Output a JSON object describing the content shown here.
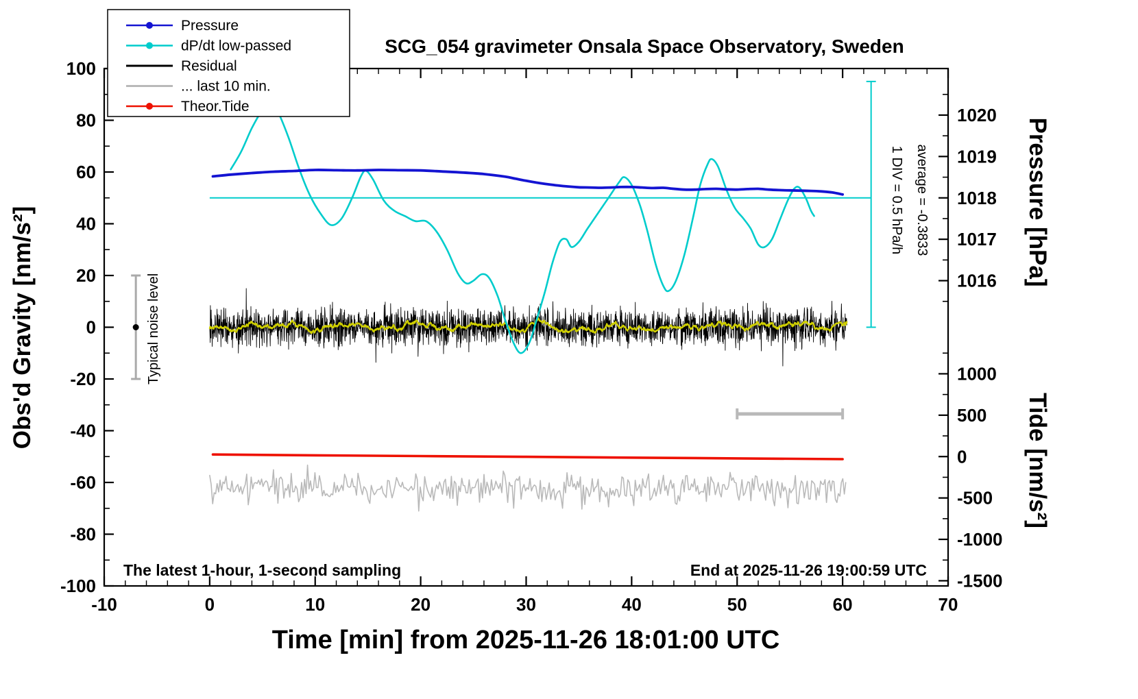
{
  "chart_data": {
    "type": "line",
    "title": "SCG_054 gravimeter Onsala Space Observatory, Sweden",
    "xlabel": "Time [min] from 2025-11-26 18:01:00 UTC",
    "ylabel_left": "Obs'd Gravity [nm/s²]",
    "ylabel_pressure": "Pressure [hPa]",
    "ylabel_tide": "Tide [nm/s²]",
    "xlim": [
      -10,
      70
    ],
    "ylim": [
      -100,
      100
    ],
    "x_major_ticks": [
      -10,
      0,
      10,
      20,
      30,
      40,
      50,
      60,
      70
    ],
    "x_minor_step": 2,
    "y_major_ticks": [
      -100,
      -80,
      -60,
      -40,
      -20,
      0,
      20,
      40,
      60,
      80,
      100
    ],
    "y_minor_ticks": [
      -90,
      -70,
      -50,
      -30,
      -10,
      10,
      30,
      50,
      70,
      90
    ],
    "pressure_axis": {
      "tick_labels": [
        "1020",
        "1019",
        "1018",
        "1017",
        "1016"
      ],
      "tick_y": [
        82,
        66,
        50,
        34,
        18
      ],
      "minor_y": [
        90,
        74,
        58,
        42,
        26,
        10
      ]
    },
    "tide_axis": {
      "tick_labels": [
        "1000",
        "500",
        "0",
        "-500",
        "-1000",
        "-1500"
      ],
      "tick_y": [
        -18,
        -34,
        -50,
        -66,
        -82,
        -98
      ],
      "minor_y": [
        -10,
        -26,
        -42,
        -58,
        -74,
        -90
      ]
    },
    "legend": [
      {
        "label": "Pressure",
        "color": "#1414d2",
        "dot": true
      },
      {
        "label": "dP/dt low-passed",
        "color": "#00cccc",
        "dot": true
      },
      {
        "label": "Residual",
        "color": "#000000",
        "dot": false
      },
      {
        "label": "... last 10 min.",
        "color": "#b9b9b9",
        "dot": false
      },
      {
        "label": "Theor.Tide",
        "color": "#ee1100",
        "dot": true
      }
    ],
    "series": [
      {
        "name": "... last 10 min.",
        "type": "noise",
        "color": "#b9b9b9",
        "width": 1.6,
        "mean": -62.3,
        "std": 2.9,
        "spike_prob": 0.012,
        "spike_gain": 2.0,
        "n": 430,
        "x0": 0,
        "x1": 60.3,
        "seed": 777,
        "clamp": 9
      },
      {
        "name": "Theor.Tide",
        "type": "poly",
        "color": "#ee1100",
        "width": 3.6,
        "points": [
          [
            0.3,
            -49.2
          ],
          [
            10,
            -49.5
          ],
          [
            20,
            -49.8
          ],
          [
            30,
            -50.1
          ],
          [
            40,
            -50.4
          ],
          [
            50,
            -50.7
          ],
          [
            60,
            -51.0
          ]
        ]
      },
      {
        "name": "Residual",
        "type": "noise",
        "color": "#000000",
        "width": 0.9,
        "mean": 0,
        "std": 3.4,
        "spike_prob": 0.008,
        "spike_gain": 2.3,
        "n": 2600,
        "x0": 0,
        "x1": 60.4,
        "seed": 1337,
        "clamp": 15
      },
      {
        "name": "Residual low-passed",
        "type": "lowpass-of-noise",
        "color": "#cfcf00",
        "width": 2.2,
        "window": 81,
        "gain": 3.5
      },
      {
        "name": "dP/dt low-passed",
        "type": "smooth",
        "color": "#00cccc",
        "width": 2.6,
        "points": [
          [
            2,
            61
          ],
          [
            3,
            68
          ],
          [
            4,
            77
          ],
          [
            5,
            84
          ],
          [
            5.8,
            87
          ],
          [
            6.5,
            83
          ],
          [
            7.5,
            73
          ],
          [
            8.5,
            61
          ],
          [
            9.5,
            51
          ],
          [
            10.5,
            44
          ],
          [
            11.5,
            39.5
          ],
          [
            12.5,
            42
          ],
          [
            13.5,
            50
          ],
          [
            14.3,
            58
          ],
          [
            14.8,
            60.5
          ],
          [
            15.5,
            57
          ],
          [
            16.5,
            49
          ],
          [
            17.5,
            45
          ],
          [
            18.5,
            43
          ],
          [
            19.5,
            41
          ],
          [
            20.5,
            41
          ],
          [
            21.5,
            37
          ],
          [
            22.5,
            30
          ],
          [
            23.5,
            21
          ],
          [
            24.3,
            17
          ],
          [
            25,
            18
          ],
          [
            25.8,
            20.5
          ],
          [
            26.5,
            19
          ],
          [
            27.3,
            12
          ],
          [
            28,
            3
          ],
          [
            28.8,
            -6
          ],
          [
            29.5,
            -10
          ],
          [
            30.3,
            -6
          ],
          [
            31,
            3
          ],
          [
            31.8,
            14
          ],
          [
            32.5,
            25
          ],
          [
            33.2,
            33
          ],
          [
            33.8,
            34
          ],
          [
            34.3,
            31
          ],
          [
            35,
            33
          ],
          [
            35.8,
            38
          ],
          [
            36.8,
            44
          ],
          [
            37.8,
            50
          ],
          [
            38.8,
            56
          ],
          [
            39.3,
            58
          ],
          [
            40,
            55
          ],
          [
            40.8,
            47
          ],
          [
            41.5,
            37
          ],
          [
            42.3,
            24
          ],
          [
            43,
            16
          ],
          [
            43.5,
            14
          ],
          [
            44.2,
            18
          ],
          [
            45,
            28
          ],
          [
            45.8,
            42
          ],
          [
            46.5,
            55
          ],
          [
            47.2,
            63
          ],
          [
            47.6,
            65
          ],
          [
            48.2,
            62
          ],
          [
            49,
            53
          ],
          [
            49.8,
            46
          ],
          [
            50.6,
            42
          ],
          [
            51.3,
            38
          ],
          [
            52,
            32
          ],
          [
            52.6,
            31
          ],
          [
            53.3,
            34
          ],
          [
            54,
            41
          ],
          [
            54.8,
            49
          ],
          [
            55.4,
            53.5
          ],
          [
            55.9,
            54
          ],
          [
            56.5,
            50
          ],
          [
            57,
            45
          ],
          [
            57.3,
            43
          ]
        ]
      },
      {
        "name": "Pressure",
        "type": "smooth",
        "color": "#1414d2",
        "width": 3.8,
        "points": [
          [
            0.3,
            58.3
          ],
          [
            2,
            59
          ],
          [
            4,
            59.6
          ],
          [
            6,
            60.1
          ],
          [
            8,
            60.4
          ],
          [
            10,
            60.8
          ],
          [
            12,
            60.7
          ],
          [
            14,
            60.6
          ],
          [
            16,
            60.8
          ],
          [
            18,
            60.7
          ],
          [
            20,
            60.6
          ],
          [
            22,
            60.2
          ],
          [
            24,
            59.8
          ],
          [
            26,
            59.2
          ],
          [
            28,
            58.2
          ],
          [
            29,
            57.4
          ],
          [
            30,
            56.6
          ],
          [
            31,
            55.9
          ],
          [
            32,
            55.3
          ],
          [
            33,
            54.8
          ],
          [
            34,
            54.4
          ],
          [
            35,
            54.1
          ],
          [
            36,
            54
          ],
          [
            37,
            53.9
          ],
          [
            38,
            54
          ],
          [
            39,
            54.2
          ],
          [
            40,
            54.2
          ],
          [
            41,
            54
          ],
          [
            42,
            53.8
          ],
          [
            43,
            53.9
          ],
          [
            44,
            53.5
          ],
          [
            45,
            53.2
          ],
          [
            46,
            53.2
          ],
          [
            47,
            53.4
          ],
          [
            48,
            53.5
          ],
          [
            49,
            53.3
          ],
          [
            50,
            53.2
          ],
          [
            51,
            53.4
          ],
          [
            52,
            53.5
          ],
          [
            53,
            53.2
          ],
          [
            54,
            53
          ],
          [
            55,
            52.9
          ],
          [
            56,
            52.8
          ],
          [
            57,
            52.7
          ],
          [
            58,
            52.5
          ],
          [
            59,
            52.1
          ],
          [
            60,
            51.3
          ]
        ]
      }
    ],
    "annotations": {
      "mean_line": {
        "y": 50,
        "x0": 0,
        "x1": 62.7,
        "color": "#00cccc"
      },
      "div_scale": {
        "x": 62.7,
        "y0": 0,
        "y1": 95,
        "color": "#00cccc",
        "label": "1 DIV = 0.5 hPa/h",
        "average_label": "average = -0.3833"
      },
      "noise_marker": {
        "x": -7,
        "y": 0,
        "half_range": 20,
        "label": "Typical noise level"
      },
      "last10_bar": {
        "x0": 50,
        "x1": 60,
        "y": -33.5,
        "color": "#b9b9b9"
      },
      "footer_left": "The latest 1-hour, 1-second sampling",
      "footer_right": "End at 2025-11-26 19:00:59 UTC"
    }
  }
}
